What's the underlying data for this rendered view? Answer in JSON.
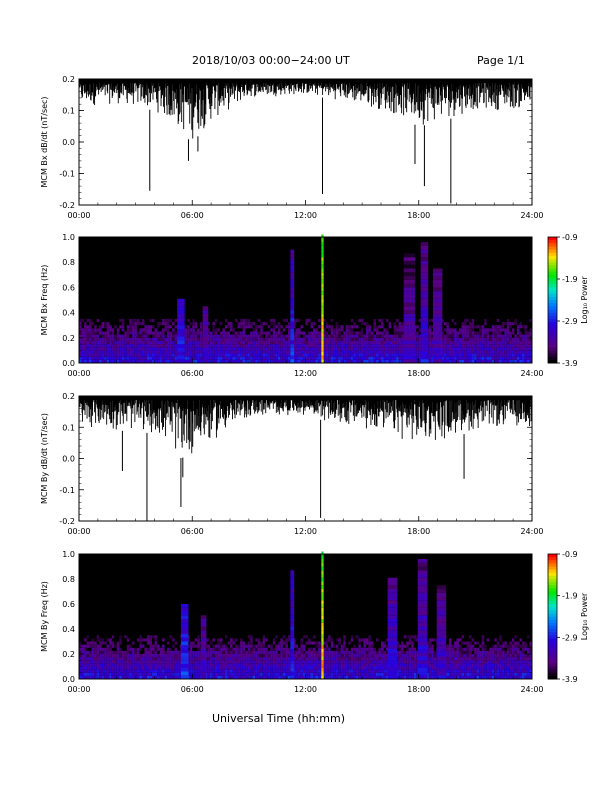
{
  "page": {
    "title": "2018/10/03  00:00−24:00 UT",
    "page_number": "Page 1/1",
    "xlabel": "Universal Time (hh:mm)"
  },
  "chart_data": [
    {
      "type": "line",
      "ylabel": "MCM Bx dB/dt (nT/sec)",
      "xlim": [
        0,
        24
      ],
      "ylim": [
        -0.2,
        0.2
      ],
      "x_ticks": [
        "00:00",
        "06:00",
        "12:00",
        "18:00",
        "24:00"
      ],
      "y_ticks": [
        "-0.2",
        "-0.1",
        "0.0",
        "0.1",
        "0.2"
      ],
      "baseline_upper": 0.19,
      "noise_profile": [
        {
          "x": 0,
          "lower": 0.11
        },
        {
          "x": 2,
          "lower": 0.12
        },
        {
          "x": 4,
          "lower": 0.1
        },
        {
          "x": 5.3,
          "lower": 0.03
        },
        {
          "x": 6,
          "lower": 0.0
        },
        {
          "x": 7,
          "lower": 0.06
        },
        {
          "x": 9,
          "lower": 0.14
        },
        {
          "x": 12,
          "lower": 0.15
        },
        {
          "x": 14,
          "lower": 0.13
        },
        {
          "x": 16,
          "lower": 0.1
        },
        {
          "x": 18,
          "lower": 0.05
        },
        {
          "x": 19,
          "lower": 0.06
        },
        {
          "x": 21,
          "lower": 0.1
        },
        {
          "x": 24,
          "lower": 0.1
        }
      ],
      "spikes": [
        {
          "x": 3.75,
          "y": -0.155
        },
        {
          "x": 5.8,
          "y": -0.06
        },
        {
          "x": 6.3,
          "y": -0.03
        },
        {
          "x": 12.9,
          "y": -0.165
        },
        {
          "x": 17.8,
          "y": -0.07
        },
        {
          "x": 18.3,
          "y": -0.14
        },
        {
          "x": 19.7,
          "y": -0.195
        }
      ]
    },
    {
      "type": "heatmap",
      "ylabel": "MCM Bx Freq (Hz)",
      "xlim": [
        0,
        24
      ],
      "ylim": [
        0,
        1.0
      ],
      "x_ticks": [
        "00:00",
        "06:00",
        "12:00",
        "18:00",
        "24:00"
      ],
      "y_ticks": [
        "0.0",
        "0.2",
        "0.4",
        "0.6",
        "0.8",
        "1.0"
      ],
      "colorbar": {
        "label": "Log₁₀ Power",
        "ticks": [
          "-0.9",
          "-1.9",
          "-2.9",
          "-3.9"
        ],
        "range": [
          -3.9,
          -0.9
        ]
      },
      "bands": [
        {
          "x": 5.4,
          "width": 0.4,
          "top": 0.5,
          "power": -2.9
        },
        {
          "x": 6.7,
          "width": 0.3,
          "top": 0.45,
          "power": -3.2
        },
        {
          "x": 11.3,
          "width": 0.2,
          "top": 0.9,
          "power": -2.8
        },
        {
          "x": 12.9,
          "width": 0.12,
          "top": 1.0,
          "power": -1.2
        },
        {
          "x": 17.5,
          "width": 0.6,
          "top": 0.85,
          "power": -3.2
        },
        {
          "x": 18.3,
          "width": 0.4,
          "top": 0.95,
          "power": -3.0
        },
        {
          "x": 19.0,
          "width": 0.5,
          "top": 0.75,
          "power": -3.2
        }
      ]
    },
    {
      "type": "line",
      "ylabel": "MCM By dB/dt (nT/sec)",
      "xlim": [
        0,
        24
      ],
      "ylim": [
        -0.2,
        0.2
      ],
      "x_ticks": [
        "00:00",
        "06:00",
        "12:00",
        "18:00",
        "24:00"
      ],
      "y_ticks": [
        "-0.2",
        "-0.1",
        "0.0",
        "0.1",
        "0.2"
      ],
      "baseline_upper": 0.19,
      "noise_profile": [
        {
          "x": 0,
          "lower": 0.1
        },
        {
          "x": 2,
          "lower": 0.09
        },
        {
          "x": 4,
          "lower": 0.08
        },
        {
          "x": 5.3,
          "lower": 0.0
        },
        {
          "x": 6,
          "lower": 0.01
        },
        {
          "x": 7,
          "lower": 0.05
        },
        {
          "x": 9,
          "lower": 0.13
        },
        {
          "x": 12,
          "lower": 0.14
        },
        {
          "x": 14,
          "lower": 0.1
        },
        {
          "x": 16,
          "lower": 0.08
        },
        {
          "x": 18,
          "lower": 0.04
        },
        {
          "x": 19,
          "lower": 0.05
        },
        {
          "x": 21,
          "lower": 0.09
        },
        {
          "x": 24,
          "lower": 0.1
        }
      ],
      "spikes": [
        {
          "x": 2.3,
          "y": -0.04
        },
        {
          "x": 3.6,
          "y": -0.2
        },
        {
          "x": 5.5,
          "y": -0.06
        },
        {
          "x": 5.4,
          "y": -0.155
        },
        {
          "x": 12.8,
          "y": -0.19
        },
        {
          "x": 20.4,
          "y": -0.065
        }
      ]
    },
    {
      "type": "heatmap",
      "ylabel": "MCM By Freq (Hz)",
      "xlim": [
        0,
        24
      ],
      "ylim": [
        0,
        1.0
      ],
      "x_ticks": [
        "00:00",
        "06:00",
        "12:00",
        "18:00",
        "24:00"
      ],
      "y_ticks": [
        "0.0",
        "0.2",
        "0.4",
        "0.6",
        "0.8",
        "1.0"
      ],
      "colorbar": {
        "label": "Log₁₀ Power",
        "ticks": [
          "-0.9",
          "-1.9",
          "-2.9",
          "-3.9"
        ],
        "range": [
          -3.9,
          -0.9
        ]
      },
      "bands": [
        {
          "x": 5.6,
          "width": 0.4,
          "top": 0.6,
          "power": -2.8
        },
        {
          "x": 6.6,
          "width": 0.3,
          "top": 0.5,
          "power": -3.2
        },
        {
          "x": 11.3,
          "width": 0.2,
          "top": 0.85,
          "power": -2.8
        },
        {
          "x": 12.9,
          "width": 0.12,
          "top": 1.0,
          "power": -1.2
        },
        {
          "x": 16.6,
          "width": 0.5,
          "top": 0.8,
          "power": -3.0
        },
        {
          "x": 18.2,
          "width": 0.5,
          "top": 0.95,
          "power": -3.0
        },
        {
          "x": 19.2,
          "width": 0.5,
          "top": 0.75,
          "power": -3.1
        }
      ]
    }
  ]
}
